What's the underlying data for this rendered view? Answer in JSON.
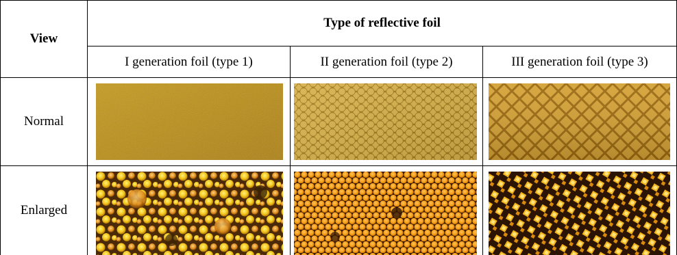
{
  "table": {
    "view_header": "View",
    "group_header": "Type of reflective foil",
    "columns": [
      "I generation foil (type 1)",
      "II generation foil (type 2)",
      "III generation foil (type 3)"
    ],
    "rows": [
      {
        "label": "Normal"
      },
      {
        "label": "Enlarged"
      }
    ]
  }
}
